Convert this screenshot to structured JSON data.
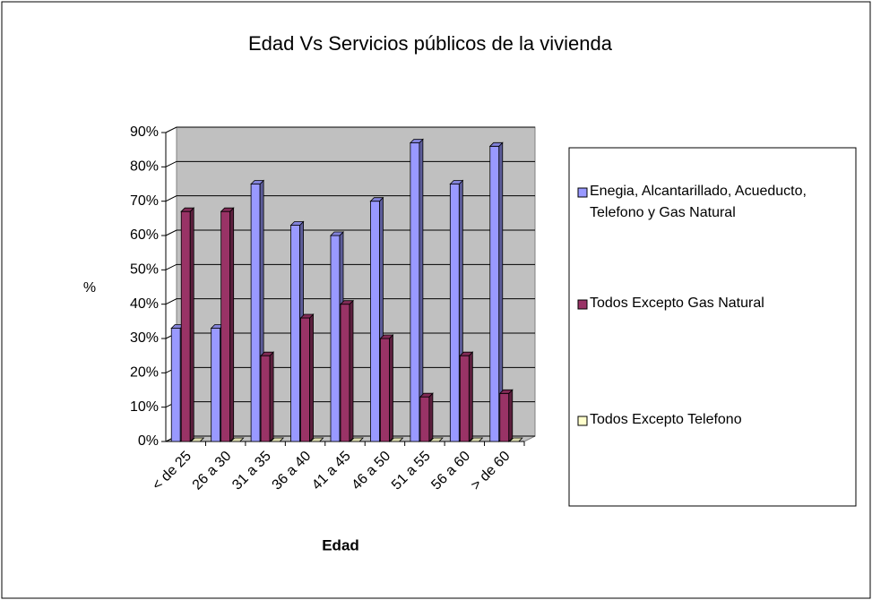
{
  "chart_data": {
    "type": "bar",
    "title": "Edad Vs Servicios públicos de la vivienda",
    "x_label": "Edad",
    "y_label": "%",
    "categories": [
      "< de 25",
      "26 a 30",
      "31 a 35",
      "36 a 40",
      "41 a 45",
      "46 a 50",
      "51 a 55",
      "56 a 60",
      "> de 60"
    ],
    "series": [
      {
        "name": "Enegia, Alcantarillado, Acueducto, Telefono y Gas Natural",
        "color": "#9999ff",
        "values": [
          33,
          33,
          75,
          63,
          60,
          70,
          87,
          75,
          86
        ]
      },
      {
        "name": "Todos Excepto Gas Natural",
        "color": "#993366",
        "values": [
          67,
          67,
          25,
          36,
          40,
          30,
          13,
          25,
          14
        ]
      },
      {
        "name": "Todos Excepto Telefono",
        "color": "#ffffcc",
        "values": [
          0,
          0,
          0,
          0,
          0,
          0,
          0,
          0,
          0
        ]
      }
    ],
    "ylim": [
      0,
      90
    ],
    "yticks": [
      {
        "value": 0,
        "label": "0%"
      },
      {
        "value": 10,
        "label": "10%"
      },
      {
        "value": 20,
        "label": "20%"
      },
      {
        "value": 30,
        "label": "30%"
      },
      {
        "value": 40,
        "label": "40%"
      },
      {
        "value": 50,
        "label": "50%"
      },
      {
        "value": 60,
        "label": "60%"
      },
      {
        "value": 70,
        "label": "70%"
      },
      {
        "value": 80,
        "label": "80%"
      },
      {
        "value": 90,
        "label": "90%"
      }
    ],
    "grid": true,
    "legend": "right"
  }
}
